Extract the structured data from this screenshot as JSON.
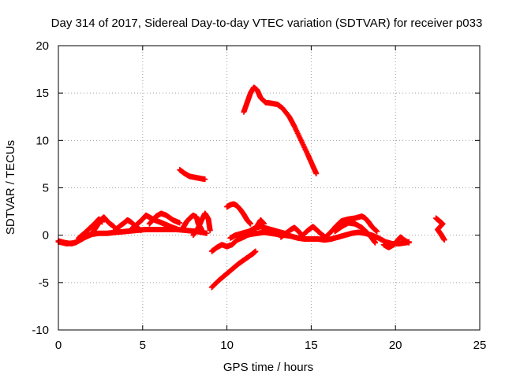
{
  "chart_data": {
    "type": "scatter",
    "title": "Day 314 of 2017, Sidereal Day-to-day VTEC variation (SDTVAR) for receiver p033",
    "xlabel": "GPS time / hours",
    "ylabel": "SDTVAR / TECUs",
    "xlim": [
      0,
      25
    ],
    "ylim": [
      -10,
      20
    ],
    "xticks": [
      0,
      5,
      10,
      15,
      20,
      25
    ],
    "yticks": [
      -10,
      -5,
      0,
      5,
      10,
      15,
      20
    ],
    "grid": true,
    "legend": "none",
    "marker": "+",
    "color": "#ff0000",
    "series": [
      {
        "name": "tracks",
        "points_description": "satellite arcs",
        "tracks": [
          [
            [
              0.0,
              -0.6
            ],
            [
              0.4,
              -0.8
            ],
            [
              0.8,
              -0.9
            ],
            [
              1.2,
              -0.6
            ],
            [
              1.6,
              -0.2
            ],
            [
              2.0,
              0.1
            ],
            [
              2.4,
              0.2
            ],
            [
              2.9,
              0.2
            ],
            [
              3.4,
              0.3
            ],
            [
              4.0,
              0.4
            ],
            [
              4.6,
              0.5
            ],
            [
              5.2,
              0.6
            ],
            [
              5.8,
              0.6
            ],
            [
              6.4,
              0.6
            ],
            [
              7.0,
              0.6
            ],
            [
              7.6,
              0.5
            ],
            [
              8.2,
              0.4
            ],
            [
              8.8,
              0.2
            ]
          ],
          [
            [
              0.0,
              -0.7
            ],
            [
              0.5,
              -0.9
            ],
            [
              1.0,
              -0.8
            ],
            [
              1.4,
              -0.4
            ],
            [
              1.8,
              0.0
            ],
            [
              2.2,
              0.3
            ]
          ],
          [
            [
              1.2,
              -0.3
            ],
            [
              1.6,
              0.3
            ],
            [
              1.9,
              0.8
            ],
            [
              2.2,
              1.3
            ],
            [
              2.4,
              1.7
            ],
            [
              2.6,
              1.4
            ]
          ],
          [
            [
              2.0,
              0.2
            ],
            [
              2.3,
              1.0
            ],
            [
              2.5,
              1.6
            ],
            [
              2.7,
              1.9
            ],
            [
              3.0,
              1.3
            ],
            [
              3.3,
              0.9
            ]
          ],
          [
            [
              3.3,
              0.4
            ],
            [
              3.6,
              0.9
            ],
            [
              3.9,
              1.3
            ],
            [
              4.1,
              1.6
            ],
            [
              4.3,
              1.4
            ],
            [
              4.6,
              0.9
            ],
            [
              4.9,
              0.5
            ]
          ],
          [
            [
              4.3,
              0.6
            ],
            [
              4.7,
              1.2
            ],
            [
              5.0,
              1.7
            ],
            [
              5.2,
              2.1
            ],
            [
              5.4,
              1.9
            ],
            [
              5.7,
              1.6
            ],
            [
              6.0,
              1.4
            ],
            [
              6.4,
              1.1
            ],
            [
              6.8,
              0.8
            ],
            [
              7.1,
              0.6
            ]
          ],
          [
            [
              5.4,
              1.2
            ],
            [
              5.8,
              2.0
            ],
            [
              6.1,
              2.3
            ],
            [
              6.4,
              2.1
            ],
            [
              6.8,
              1.6
            ],
            [
              7.2,
              1.3
            ]
          ],
          [
            [
              7.4,
              0.8
            ],
            [
              7.6,
              1.4
            ],
            [
              7.8,
              1.8
            ],
            [
              8.0,
              2.1
            ],
            [
              8.2,
              1.9
            ],
            [
              8.3,
              1.2
            ],
            [
              8.5,
              0.6
            ]
          ],
          [
            [
              8.0,
              0.0
            ],
            [
              8.3,
              0.8
            ],
            [
              8.5,
              1.6
            ],
            [
              8.7,
              2.3
            ],
            [
              8.9,
              1.7
            ],
            [
              9.0,
              0.5
            ]
          ],
          [
            [
              7.2,
              6.9
            ],
            [
              7.5,
              6.5
            ],
            [
              7.8,
              6.2
            ],
            [
              8.1,
              6.1
            ],
            [
              8.4,
              6.0
            ],
            [
              8.7,
              5.9
            ]
          ],
          [
            [
              9.1,
              -1.7
            ],
            [
              9.4,
              -1.3
            ],
            [
              9.7,
              -1.0
            ],
            [
              10.0,
              -1.2
            ],
            [
              10.3,
              -1.0
            ],
            [
              10.6,
              -0.5
            ],
            [
              11.0,
              -0.1
            ],
            [
              11.4,
              0.1
            ],
            [
              11.8,
              0.2
            ],
            [
              12.2,
              0.3
            ],
            [
              12.6,
              0.2
            ],
            [
              13.0,
              0.1
            ],
            [
              13.4,
              0.0
            ],
            [
              13.8,
              -0.1
            ],
            [
              14.2,
              -0.3
            ],
            [
              14.6,
              -0.4
            ],
            [
              15.0,
              -0.4
            ],
            [
              15.4,
              -0.4
            ],
            [
              15.8,
              -0.5
            ],
            [
              16.2,
              -0.4
            ],
            [
              16.6,
              -0.2
            ],
            [
              17.0,
              0.0
            ],
            [
              17.4,
              0.2
            ],
            [
              17.8,
              0.3
            ],
            [
              18.2,
              0.2
            ],
            [
              18.6,
              0.0
            ],
            [
              19.0,
              -0.3
            ],
            [
              19.4,
              -0.7
            ],
            [
              19.8,
              -0.9
            ],
            [
              20.2,
              -0.9
            ],
            [
              20.6,
              -0.8
            ],
            [
              20.8,
              -0.7
            ]
          ],
          [
            [
              9.1,
              -5.5
            ],
            [
              9.5,
              -4.8
            ],
            [
              9.9,
              -4.2
            ],
            [
              10.3,
              -3.6
            ],
            [
              10.7,
              -3.0
            ],
            [
              11.1,
              -2.5
            ],
            [
              11.5,
              -2.0
            ],
            [
              11.7,
              -1.7
            ]
          ],
          [
            [
              10.0,
              3.0
            ],
            [
              10.2,
              3.2
            ],
            [
              10.4,
              3.3
            ],
            [
              10.6,
              3.1
            ],
            [
              10.8,
              2.7
            ],
            [
              11.0,
              2.2
            ],
            [
              11.2,
              1.6
            ],
            [
              11.4,
              1.2
            ]
          ],
          [
            [
              10.2,
              -0.3
            ],
            [
              10.5,
              0.0
            ],
            [
              10.9,
              0.2
            ],
            [
              11.3,
              0.4
            ],
            [
              11.7,
              0.8
            ],
            [
              12.0,
              0.9
            ],
            [
              12.4,
              0.7
            ],
            [
              12.8,
              0.5
            ],
            [
              13.2,
              0.3
            ],
            [
              13.6,
              0.1
            ]
          ],
          [
            [
              10.6,
              -0.5
            ],
            [
              11.0,
              -0.2
            ],
            [
              11.5,
              0.3
            ],
            [
              11.8,
              1.0
            ],
            [
              12.0,
              1.6
            ],
            [
              12.2,
              1.2
            ]
          ],
          [
            [
              11.0,
              13.0
            ],
            [
              11.2,
              14.0
            ],
            [
              11.4,
              15.0
            ],
            [
              11.6,
              15.6
            ],
            [
              11.8,
              15.3
            ],
            [
              12.0,
              14.5
            ],
            [
              12.3,
              14.0
            ],
            [
              12.7,
              13.9
            ],
            [
              13.0,
              13.8
            ],
            [
              13.3,
              13.4
            ],
            [
              13.7,
              12.5
            ],
            [
              14.0,
              11.5
            ],
            [
              14.4,
              10.0
            ],
            [
              14.8,
              8.5
            ],
            [
              15.1,
              7.3
            ],
            [
              15.3,
              6.5
            ]
          ],
          [
            [
              13.2,
              -0.2
            ],
            [
              13.5,
              0.2
            ],
            [
              13.8,
              0.6
            ],
            [
              14.0,
              0.8
            ],
            [
              14.2,
              0.5
            ],
            [
              14.4,
              0.1
            ]
          ],
          [
            [
              14.5,
              0.0
            ],
            [
              14.8,
              0.5
            ],
            [
              15.1,
              0.9
            ],
            [
              15.3,
              0.6
            ],
            [
              15.6,
              0.1
            ],
            [
              15.9,
              -0.3
            ]
          ],
          [
            [
              15.8,
              -0.3
            ],
            [
              16.2,
              0.4
            ],
            [
              16.5,
              1.0
            ],
            [
              16.8,
              1.5
            ],
            [
              17.2,
              1.7
            ],
            [
              17.6,
              1.8
            ],
            [
              18.0,
              2.0
            ],
            [
              18.2,
              1.8
            ],
            [
              18.4,
              1.4
            ],
            [
              18.6,
              0.9
            ],
            [
              18.9,
              0.4
            ]
          ],
          [
            [
              16.4,
              0.4
            ],
            [
              16.8,
              0.9
            ],
            [
              17.2,
              1.3
            ],
            [
              17.6,
              1.2
            ],
            [
              18.0,
              0.8
            ],
            [
              18.3,
              0.3
            ],
            [
              18.6,
              -0.3
            ],
            [
              18.8,
              -0.8
            ]
          ],
          [
            [
              19.3,
              -1.0
            ],
            [
              19.6,
              -1.3
            ],
            [
              19.9,
              -1.0
            ],
            [
              20.1,
              -0.6
            ],
            [
              20.3,
              -0.2
            ],
            [
              20.5,
              -0.5
            ],
            [
              20.8,
              -0.8
            ]
          ],
          [
            [
              22.4,
              1.8
            ],
            [
              22.6,
              1.5
            ],
            [
              22.8,
              1.2
            ],
            [
              22.5,
              0.6
            ],
            [
              22.7,
              0.1
            ],
            [
              22.9,
              -0.5
            ]
          ]
        ]
      }
    ]
  }
}
